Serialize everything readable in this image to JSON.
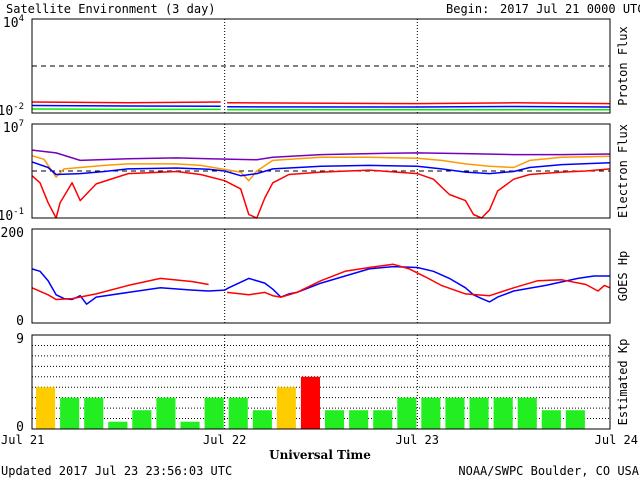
{
  "chart_data": {
    "type": "line",
    "title": "Satellite Environment (3 day)",
    "begin_label": "Begin:",
    "begin": "2017 Jul 21 0000 UTC",
    "xlabel": "Universal Time",
    "x_tick_labels": [
      "Jul 21",
      "Jul 22",
      "Jul 23",
      "Jul 24"
    ],
    "footer_left": "Updated 2017 Jul 23 23:56:03 UTC",
    "footer_right": "NOAA/SWPC Boulder, CO USA",
    "panels": [
      {
        "name": "proton",
        "ylabel": "Proton Flux",
        "scale": "log",
        "ylim": [
          0.01,
          10000
        ],
        "y_tick_labels": [
          {
            "base": "10",
            "exp": "-2",
            "value": 0.01
          },
          {
            "base": "10",
            "exp": "4",
            "value": 10000
          }
        ],
        "threshold": 10,
        "series": [
          {
            "color": "#ff0000",
            "values": [
              [
                0,
                0.05
              ],
              [
                12,
                0.045
              ],
              [
                23.5,
                0.05
              ],
              [
                24,
                null
              ],
              [
                24.3,
                0.045
              ],
              [
                48,
                0.04
              ],
              [
                60,
                0.045
              ],
              [
                72,
                0.04
              ]
            ]
          },
          {
            "color": "#0000ff",
            "values": [
              [
                0,
                0.03
              ],
              [
                12,
                0.028
              ],
              [
                23.5,
                0.027
              ],
              [
                24,
                null
              ],
              [
                24.3,
                0.025
              ],
              [
                48,
                0.024
              ],
              [
                60,
                0.026
              ],
              [
                72,
                0.024
              ]
            ]
          },
          {
            "color": "#00ee00",
            "values": [
              [
                0,
                0.018
              ],
              [
                12,
                0.017
              ],
              [
                23.5,
                0.017
              ],
              [
                24,
                null
              ],
              [
                24.3,
                0.016
              ],
              [
                48,
                0.016
              ],
              [
                60,
                0.016
              ],
              [
                72,
                0.016
              ]
            ]
          }
        ]
      },
      {
        "name": "electron",
        "ylabel": "Electron Flux",
        "scale": "log",
        "ylim": [
          0.1,
          10000000
        ],
        "y_tick_labels": [
          {
            "base": "10",
            "exp": "-1",
            "value": 0.1
          },
          {
            "base": "10",
            "exp": "7",
            "value": 10000000
          }
        ],
        "threshold": 1000,
        "series": [
          {
            "color": "#7700bb",
            "values": [
              [
                0,
                60000
              ],
              [
                3,
                35000
              ],
              [
                6,
                8000
              ],
              [
                12,
                11000
              ],
              [
                18,
                13000
              ],
              [
                22,
                11000
              ],
              [
                28,
                9000
              ],
              [
                30,
                15000
              ],
              [
                36,
                25000
              ],
              [
                42,
                30000
              ],
              [
                48,
                35000
              ],
              [
                54,
                30000
              ],
              [
                60,
                25000
              ],
              [
                66,
                25000
              ],
              [
                72,
                28000
              ]
            ]
          },
          {
            "color": "#ff9900",
            "values": [
              [
                0,
                20000
              ],
              [
                1.5,
                10000
              ],
              [
                3,
                300
              ],
              [
                4,
                1500
              ],
              [
                6,
                2000
              ],
              [
                9,
                3000
              ],
              [
                12,
                4000
              ],
              [
                18,
                4000
              ],
              [
                21,
                3000
              ],
              [
                26,
                800
              ],
              [
                27,
                150
              ],
              [
                28,
                1000
              ],
              [
                30,
                8000
              ],
              [
                36,
                15000
              ],
              [
                42,
                15000
              ],
              [
                48,
                12000
              ],
              [
                51,
                8000
              ],
              [
                54,
                4000
              ],
              [
                57,
                2500
              ],
              [
                60,
                2000
              ],
              [
                62,
                8000
              ],
              [
                66,
                15000
              ],
              [
                72,
                18000
              ]
            ]
          },
          {
            "color": "#0000ff",
            "values": [
              [
                0,
                6000
              ],
              [
                2,
                2000
              ],
              [
                3,
                500
              ],
              [
                6,
                600
              ],
              [
                9,
                900
              ],
              [
                12,
                1500
              ],
              [
                18,
                1800
              ],
              [
                22,
                1400
              ],
              [
                24,
                1000
              ],
              [
                26,
                400
              ],
              [
                28,
                600
              ],
              [
                30,
                1500
              ],
              [
                36,
                2500
              ],
              [
                42,
                3000
              ],
              [
                48,
                2500
              ],
              [
                51,
                1500
              ],
              [
                54,
                800
              ],
              [
                57,
                600
              ],
              [
                60,
                900
              ],
              [
                62,
                2000
              ],
              [
                66,
                3500
              ],
              [
                72,
                5000
              ]
            ]
          },
          {
            "color": "#ff0000",
            "values": [
              [
                0,
                400
              ],
              [
                1,
                100
              ],
              [
                2,
                2
              ],
              [
                3,
                0.1
              ],
              [
                3.5,
                2
              ],
              [
                5,
                100
              ],
              [
                6,
                3
              ],
              [
                8,
                80
              ],
              [
                12,
                600
              ],
              [
                18,
                900
              ],
              [
                21,
                500
              ],
              [
                24,
                150
              ],
              [
                26,
                30
              ],
              [
                27,
                0.2
              ],
              [
                28,
                0.1
              ],
              [
                29,
                5
              ],
              [
                30,
                100
              ],
              [
                32,
                500
              ],
              [
                36,
                800
              ],
              [
                42,
                1200
              ],
              [
                48,
                600
              ],
              [
                50,
                200
              ],
              [
                52,
                10
              ],
              [
                54,
                3
              ],
              [
                55,
                0.2
              ],
              [
                56,
                0.1
              ],
              [
                57,
                0.5
              ],
              [
                58,
                20
              ],
              [
                60,
                200
              ],
              [
                62,
                500
              ],
              [
                66,
                800
              ],
              [
                69,
                1000
              ],
              [
                72,
                1500
              ]
            ]
          }
        ]
      },
      {
        "name": "goes_hp",
        "ylabel": "GOES Hp",
        "scale": "linear",
        "ylim": [
          0,
          200
        ],
        "y_tick_labels": [
          {
            "base": "0",
            "value": 0
          },
          {
            "base": "200",
            "value": 200
          }
        ],
        "series": [
          {
            "color": "#0000ff",
            "values": [
              [
                0,
                115
              ],
              [
                1,
                110
              ],
              [
                2,
                90
              ],
              [
                3,
                60
              ],
              [
                4,
                52
              ],
              [
                5,
                50
              ],
              [
                6,
                58
              ],
              [
                6.8,
                40
              ],
              [
                8,
                55
              ],
              [
                12,
                65
              ],
              [
                16,
                75
              ],
              [
                20,
                70
              ],
              [
                22,
                68
              ],
              [
                24,
                70
              ],
              [
                24.5,
                75
              ],
              [
                27,
                95
              ],
              [
                29,
                85
              ],
              [
                30,
                72
              ],
              [
                31,
                55
              ],
              [
                32,
                62
              ],
              [
                33,
                65
              ],
              [
                36,
                85
              ],
              [
                39,
                100
              ],
              [
                42,
                115
              ],
              [
                45,
                120
              ],
              [
                48,
                118
              ],
              [
                50,
                110
              ],
              [
                52,
                95
              ],
              [
                54,
                75
              ],
              [
                55,
                60
              ],
              [
                56,
                52
              ],
              [
                57,
                45
              ],
              [
                58,
                55
              ],
              [
                60,
                68
              ],
              [
                64,
                80
              ],
              [
                68,
                95
              ],
              [
                70,
                100
              ],
              [
                72,
                100
              ]
            ]
          },
          {
            "color": "#ff0000",
            "values": [
              [
                0,
                75
              ],
              [
                2,
                60
              ],
              [
                3,
                50
              ],
              [
                5,
                52
              ],
              [
                8,
                62
              ],
              [
                12,
                80
              ],
              [
                16,
                95
              ],
              [
                20,
                88
              ],
              [
                22,
                82
              ],
              [
                24,
                null
              ],
              [
                24.3,
                65
              ],
              [
                27,
                60
              ],
              [
                29,
                65
              ],
              [
                30,
                58
              ],
              [
                31,
                55
              ],
              [
                33,
                65
              ],
              [
                36,
                90
              ],
              [
                39,
                110
              ],
              [
                42,
                118
              ],
              [
                45,
                125
              ],
              [
                47,
                115
              ],
              [
                49,
                98
              ],
              [
                51,
                80
              ],
              [
                54,
                62
              ],
              [
                57,
                58
              ],
              [
                60,
                75
              ],
              [
                63,
                90
              ],
              [
                66,
                92
              ],
              [
                69,
                82
              ],
              [
                70.5,
                68
              ],
              [
                71.3,
                80
              ],
              [
                72,
                75
              ]
            ]
          }
        ]
      },
      {
        "name": "kp",
        "ylabel": "Estimated Kp",
        "scale": "linear",
        "ylim": [
          0,
          9
        ],
        "y_tick_labels": [
          {
            "base": "0",
            "value": 0
          },
          {
            "base": "9",
            "value": 9
          }
        ],
        "type": "bar",
        "values": [
          4,
          3,
          3,
          0.7,
          1.8,
          3,
          0.7,
          3,
          3,
          1.8,
          4,
          5,
          1.8,
          1.8,
          1.8,
          3,
          3,
          3,
          3,
          3,
          3,
          1.8,
          1.8
        ],
        "colors": [
          "#ffcc00",
          "#22ee22",
          "#22ee22",
          "#22ee22",
          "#22ee22",
          "#22ee22",
          "#22ee22",
          "#22ee22",
          "#22ee22",
          "#22ee22",
          "#ffcc00",
          "#ff0000",
          "#22ee22",
          "#22ee22",
          "#22ee22",
          "#22ee22",
          "#22ee22",
          "#22ee22",
          "#22ee22",
          "#22ee22",
          "#22ee22",
          "#22ee22",
          "#22ee22"
        ]
      }
    ]
  }
}
